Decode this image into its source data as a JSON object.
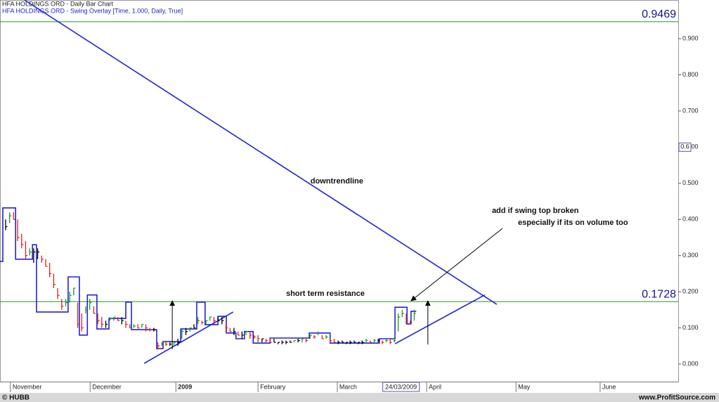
{
  "header": {
    "title": "HFA HOLDINGS ORD - Daily Bar Chart",
    "subtitle": "HFA HOLDINGS ORD - Swing Overlay [Time, 1.000, Daily, True]"
  },
  "chart_data": {
    "type": "ohlc",
    "xlim": [
      -1.4,
      167.9
    ],
    "ylim": [
      -0.0486,
      1.007
    ],
    "yticks": [
      {
        "value": 0,
        "label": "0.000"
      },
      {
        "value": 0.1,
        "label": "0.100"
      },
      {
        "value": 0.2,
        "label": "0.200"
      },
      {
        "value": 0.3,
        "label": "0.300"
      },
      {
        "value": 0.4,
        "label": "0.400"
      },
      {
        "value": 0.5,
        "label": "0.500"
      },
      {
        "value": 0.6,
        "label": "0.600"
      },
      {
        "value": 0.7,
        "label": "0.700"
      },
      {
        "value": 0.8,
        "label": "0.800"
      },
      {
        "value": 0.9,
        "label": "0.900"
      }
    ],
    "xticks": [
      {
        "value": 1.2,
        "label": "November"
      },
      {
        "value": 21.1,
        "label": "December"
      },
      {
        "value": 42.5,
        "label": "2009"
      },
      {
        "value": 63.0,
        "label": "February"
      },
      {
        "value": 82.8,
        "label": "March"
      },
      {
        "value": 105.1,
        "label": "April"
      },
      {
        "value": 127.4,
        "label": "May"
      },
      {
        "value": 148.4,
        "label": "June"
      }
    ],
    "high": [
      0.4,
      0.42,
      0.42,
      0.4,
      0.36,
      0.34,
      0.32,
      0.32,
      0.32,
      0.3,
      0.29,
      0.28,
      0.25,
      0.21,
      0.18,
      0.18,
      0.2,
      0.21,
      0.17,
      0.14,
      0.16,
      0.18,
      0.16,
      0.14,
      0.13,
      0.12,
      0.13,
      0.13,
      0.13,
      0.13,
      0.12,
      0.11,
      0.11,
      0.11,
      0.11,
      0.11,
      0.1,
      0.1,
      0.06,
      0.06,
      0.06,
      0.06,
      0.06,
      0.07,
      0.1,
      0.1,
      0.1,
      0.11,
      0.13,
      0.12,
      0.12,
      0.13,
      0.13,
      0.13,
      0.13,
      0.11,
      0.1,
      0.1,
      0.09,
      0.09,
      0.09,
      0.09,
      0.08,
      0.08,
      0.07,
      0.07,
      0.07,
      0.07,
      0.06,
      0.065,
      0.065,
      0.065,
      0.065,
      0.07,
      0.07,
      0.07,
      0.08,
      0.08,
      0.09,
      0.08,
      0.08,
      0.07,
      0.07,
      0.065,
      0.065,
      0.06,
      0.065,
      0.065,
      0.06,
      0.065,
      0.07,
      0.065,
      0.07,
      0.07,
      0.065,
      0.07,
      0.07,
      0.07,
      0.14,
      0.15,
      0.14,
      0.12,
      0.15
    ],
    "low": [
      0.37,
      0.39,
      0.4,
      0.34,
      0.32,
      0.29,
      0.3,
      0.28,
      0.29,
      0.28,
      0.27,
      0.24,
      0.21,
      0.18,
      0.15,
      0.16,
      0.17,
      0.19,
      0.1,
      0.09,
      0.14,
      0.15,
      0.14,
      0.11,
      0.1,
      0.1,
      0.12,
      0.12,
      0.12,
      0.11,
      0.1,
      0.1,
      0.1,
      0.1,
      0.1,
      0.09,
      0.09,
      0.09,
      0.04,
      0.05,
      0.05,
      0.05,
      0.05,
      0.05,
      0.07,
      0.08,
      0.09,
      0.1,
      0.11,
      0.11,
      0.11,
      0.12,
      0.11,
      0.12,
      0.11,
      0.09,
      0.09,
      0.08,
      0.08,
      0.07,
      0.08,
      0.07,
      0.07,
      0.06,
      0.06,
      0.06,
      0.06,
      0.06,
      0.055,
      0.055,
      0.055,
      0.06,
      0.06,
      0.06,
      0.06,
      0.06,
      0.07,
      0.07,
      0.08,
      0.07,
      0.07,
      0.06,
      0.06,
      0.055,
      0.06,
      0.055,
      0.055,
      0.06,
      0.055,
      0.055,
      0.06,
      0.06,
      0.06,
      0.06,
      0.055,
      0.06,
      0.055,
      0.06,
      0.09,
      0.13,
      0.11,
      0.11,
      0.12
    ],
    "close": [
      0.38,
      0.41,
      0.4,
      0.35,
      0.33,
      0.3,
      0.31,
      0.31,
      0.31,
      0.29,
      0.27,
      0.25,
      0.22,
      0.19,
      0.16,
      0.17,
      0.19,
      0.21,
      0.11,
      0.1,
      0.15,
      0.17,
      0.14,
      0.12,
      0.11,
      0.11,
      0.125,
      0.13,
      0.12,
      0.12,
      0.11,
      0.1,
      0.105,
      0.1,
      0.11,
      0.1,
      0.095,
      0.095,
      0.05,
      0.06,
      0.055,
      0.055,
      0.06,
      0.06,
      0.09,
      0.09,
      0.1,
      0.1,
      0.12,
      0.115,
      0.12,
      0.13,
      0.12,
      0.12,
      0.12,
      0.1,
      0.09,
      0.09,
      0.08,
      0.08,
      0.09,
      0.08,
      0.075,
      0.07,
      0.07,
      0.065,
      0.06,
      0.06,
      0.06,
      0.06,
      0.06,
      0.06,
      0.065,
      0.065,
      0.07,
      0.065,
      0.08,
      0.075,
      0.085,
      0.07,
      0.075,
      0.065,
      0.06,
      0.06,
      0.06,
      0.06,
      0.06,
      0.06,
      0.06,
      0.06,
      0.065,
      0.06,
      0.065,
      0.065,
      0.06,
      0.065,
      0.06,
      0.065,
      0.13,
      0.14,
      0.12,
      0.115,
      0.14
    ],
    "up_color": "#1a9c1a",
    "down_color": "#e02020",
    "flat_color": "#000000",
    "overlay": {
      "color": "#2323d2",
      "x": [
        -1.4,
        -0.7,
        -0.7,
        2.5,
        2.5,
        6.7,
        6.7,
        7.7,
        7.7,
        15.6,
        15.6,
        18.4,
        18.4,
        20.4,
        20.4,
        22.8,
        22.8,
        25.8,
        25.8,
        30,
        30,
        31.4,
        31.4,
        37.7,
        37.7,
        39.3,
        39.3,
        43.7,
        43.7,
        47.7,
        47.7,
        49.8,
        49.8,
        53,
        53,
        55.1,
        55.1,
        57.5,
        57.5,
        59.6,
        59.6,
        61.8,
        61.8,
        66,
        66,
        75.8,
        75.8,
        81,
        81,
        93.3,
        93.3,
        97.2,
        97.2,
        100.2,
        100.2,
        101.2,
        101.2,
        102.5
      ],
      "y": [
        0.284,
        0.284,
        0.432,
        0.432,
        0.29,
        0.29,
        0.33,
        0.33,
        0.144,
        0.144,
        0.241,
        0.241,
        0.08,
        0.08,
        0.191,
        0.191,
        0.097,
        0.097,
        0.126,
        0.126,
        0.171,
        0.171,
        0.095,
        0.095,
        0.043,
        0.043,
        0.062,
        0.062,
        0.097,
        0.097,
        0.171,
        0.171,
        0.109,
        0.109,
        0.132,
        0.132,
        0.086,
        0.086,
        0.07,
        0.07,
        0.09,
        0.09,
        0.058,
        0.058,
        0.072,
        0.072,
        0.086,
        0.086,
        0.058,
        0.058,
        0.07,
        0.07,
        0.157,
        0.157,
        0.111,
        0.111,
        0.146,
        0.146
      ]
    },
    "levels": [
      {
        "value": 0.9469,
        "color": "#1b9a1b"
      },
      {
        "value": 0.1728,
        "color": "#1b9a1b"
      }
    ],
    "trendlines": [
      {
        "color": "#2323d2",
        "x": [
          4.7,
          122.6
        ],
        "y": [
          1.007,
          0.165
        ]
      },
      {
        "color": "#2323d2",
        "x": [
          34.6,
          56.8
        ],
        "y": [
          0.002,
          0.144
        ]
      },
      {
        "color": "#2323d2",
        "x": [
          97.2,
          119.6
        ],
        "y": [
          0.056,
          0.191
        ]
      }
    ],
    "arrows": [
      {
        "x": [
          41.6,
          41.6
        ],
        "y": [
          0.041,
          0.175
        ]
      },
      {
        "x": [
          105.4,
          105.4
        ],
        "y": [
          0.054,
          0.175
        ]
      },
      {
        "x": [
          124.0,
          101.2
        ],
        "y": [
          0.375,
          0.175
        ]
      }
    ],
    "annotations": [
      {
        "text": "downtrendline",
        "x": 76.1,
        "y": 0.505
      },
      {
        "text": "short term resistance",
        "x": 70,
        "y": 0.194
      },
      {
        "text": "add if swing top broken",
        "x": 121.4,
        "y": 0.424
      },
      {
        "text": "especially if its on volume too",
        "x": 127.9,
        "y": 0.391
      }
    ],
    "cursor": {
      "date": {
        "value": 98,
        "label": "24/03/2009"
      },
      "price": {
        "value": 0.6,
        "label": "0.6"
      }
    }
  },
  "footer": {
    "left": "© HUBB",
    "right": "www.ProfitSource.com"
  }
}
